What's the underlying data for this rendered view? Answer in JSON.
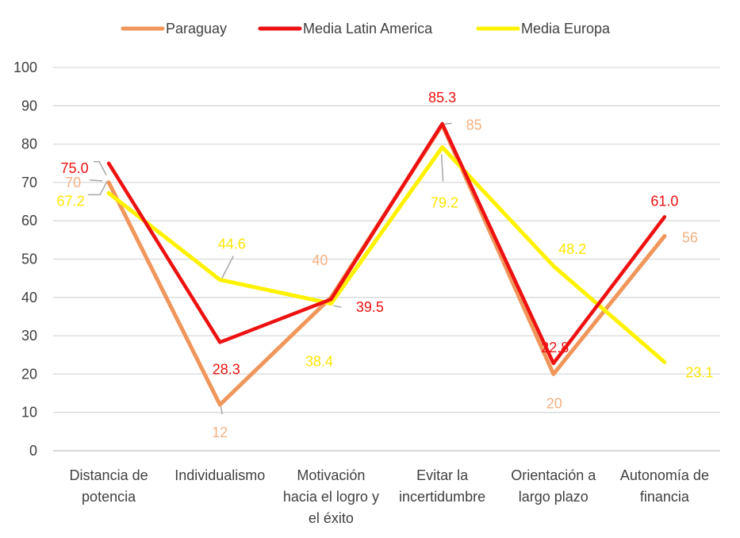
{
  "chart_data": {
    "type": "line",
    "title": "",
    "xlabel": "",
    "ylabel": "",
    "ylim": [
      0,
      100
    ],
    "yticks": [
      0,
      10,
      20,
      30,
      40,
      50,
      60,
      70,
      80,
      90,
      100
    ],
    "grid": true,
    "legend_position": "top",
    "categories": [
      [
        "Distancia de",
        "potencia"
      ],
      [
        "Individualismo"
      ],
      [
        "Motivación",
        "hacia el logro y",
        "el éxito"
      ],
      [
        "Evitar la",
        "incertidumbre"
      ],
      [
        "Orientación a",
        "largo plazo"
      ],
      [
        "Autonomía de",
        "financia"
      ]
    ],
    "series": [
      {
        "name": "Paraguay",
        "color": "#F0965A",
        "values": [
          70,
          12,
          40,
          85,
          20,
          56
        ],
        "labels": [
          "70",
          "12",
          "40",
          "85",
          "20",
          "56"
        ]
      },
      {
        "name": "Media Latin America",
        "color": "#EE1111",
        "values": [
          75.0,
          28.3,
          39.5,
          85.3,
          22.8,
          61.0
        ],
        "labels": [
          "75.0",
          "28.3",
          "39.5",
          "85.3",
          "22.8",
          "61.0"
        ]
      },
      {
        "name": "Media Europa",
        "color": "#FFF200",
        "values": [
          67.2,
          44.6,
          38.4,
          79.2,
          48.2,
          23.1
        ],
        "labels": [
          "67.2",
          "44.6",
          "38.4",
          "79.2",
          "48.2",
          "23.1"
        ]
      }
    ]
  }
}
